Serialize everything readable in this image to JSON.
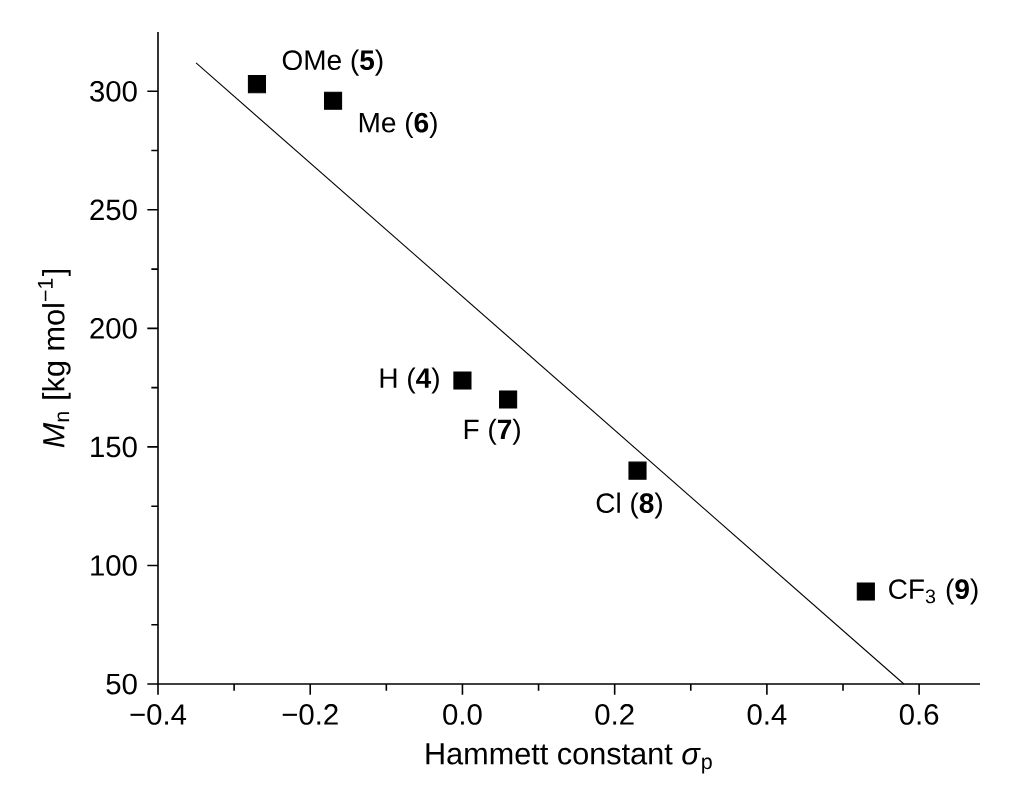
{
  "chart_data": {
    "type": "scatter",
    "xlabel": "Hammett constant *σ*$_{p}$",
    "ylabel": "*M*$_{n}$ [kg mol$^{−1}$]",
    "xlim": [
      -0.4,
      0.68
    ],
    "ylim": [
      50,
      325
    ],
    "xticks": [
      {
        "value": -0.4,
        "label": "−0.4"
      },
      {
        "value": -0.2,
        "label": "−0.2"
      },
      {
        "value": 0,
        "label": "0.0"
      },
      {
        "value": 0.2,
        "label": "0.2"
      },
      {
        "value": 0.4,
        "label": "0.4"
      },
      {
        "value": 0.6,
        "label": "0.6"
      }
    ],
    "yticks": [
      50,
      100,
      150,
      200,
      250,
      300
    ],
    "series": [
      {
        "marker": "square",
        "color": "#000000",
        "x": [
          -0.27,
          -0.17,
          0.0,
          0.06,
          0.23,
          0.53
        ],
        "values": [
          303,
          296,
          178,
          170,
          140,
          89
        ]
      },
      {
        "type": "line",
        "marker": "none",
        "line_style": "solid",
        "color": "#000000",
        "x": [
          -0.35,
          0.58
        ],
        "values": [
          312,
          50
        ]
      }
    ],
    "annotations": [
      {
        "text": "OMe (**5**)",
        "x": -0.27,
        "y": 303
      },
      {
        "text": "Me (**6**)",
        "x": -0.17,
        "y": 296
      },
      {
        "text": "H (**4**)",
        "x": 0.0,
        "y": 178
      },
      {
        "text": "F (**7**)",
        "x": 0.06,
        "y": 170
      },
      {
        "text": "Cl (**8**)",
        "x": 0.23,
        "y": 140
      },
      {
        "text": "CF$_{3}$ (**9**)",
        "x": 0.53,
        "y": 89
      }
    ]
  }
}
